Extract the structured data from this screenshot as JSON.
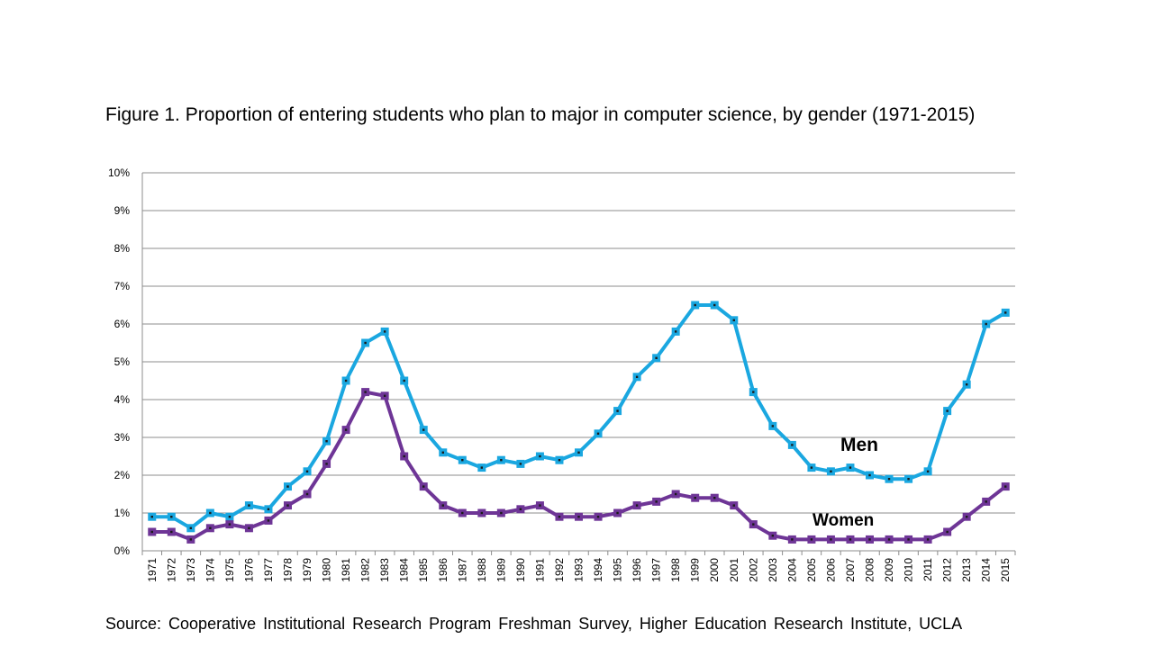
{
  "chart_data": {
    "type": "line",
    "title": "Figure 1. Proportion of entering students who plan to major in computer science, by gender (1971-2015)",
    "source": "Source: Cooperative Institutional Research Program Freshman Survey, Higher Education Research Institute, UCLA",
    "xlabel": "",
    "ylabel": "",
    "ylim": [
      0,
      10
    ],
    "y_ticks": [
      "0%",
      "1%",
      "2%",
      "3%",
      "4%",
      "5%",
      "6%",
      "7%",
      "8%",
      "9%",
      "10%"
    ],
    "grid": "horizontal",
    "legend": "inline-labels",
    "categories": [
      "1971",
      "1972",
      "1973",
      "1974",
      "1975",
      "1976",
      "1977",
      "1978",
      "1979",
      "1980",
      "1981",
      "1982",
      "1983",
      "1984",
      "1985",
      "1986",
      "1987",
      "1988",
      "1989",
      "1990",
      "1991",
      "1992",
      "1993",
      "1994",
      "1995",
      "1996",
      "1997",
      "1998",
      "1999",
      "2000",
      "2001",
      "2002",
      "2003",
      "2004",
      "2005",
      "2006",
      "2007",
      "2008",
      "2009",
      "2010",
      "2011",
      "2012",
      "2013",
      "2014",
      "2015"
    ],
    "series": [
      {
        "name": "Men",
        "color": "#1aa7e0",
        "values": [
          0.9,
          0.9,
          0.6,
          1.0,
          0.9,
          1.2,
          1.1,
          1.7,
          2.1,
          2.9,
          4.5,
          5.5,
          5.8,
          4.5,
          3.2,
          2.6,
          2.4,
          2.2,
          2.4,
          2.3,
          2.5,
          2.4,
          2.6,
          3.1,
          3.7,
          4.6,
          5.1,
          5.8,
          6.5,
          6.5,
          6.1,
          4.2,
          3.3,
          2.8,
          2.2,
          2.1,
          2.2,
          2.0,
          1.9,
          1.9,
          2.1,
          3.7,
          4.4,
          6.0,
          6.3
        ]
      },
      {
        "name": "Women",
        "color": "#6e3596",
        "values": [
          0.5,
          0.5,
          0.3,
          0.6,
          0.7,
          0.6,
          0.8,
          1.2,
          1.5,
          2.3,
          3.2,
          4.2,
          4.1,
          2.5,
          1.7,
          1.2,
          1.0,
          1.0,
          1.0,
          1.1,
          1.2,
          0.9,
          0.9,
          0.9,
          1.0,
          1.2,
          1.3,
          1.5,
          1.4,
          1.4,
          1.2,
          0.7,
          0.4,
          0.3,
          0.3,
          0.3,
          0.3,
          0.3,
          0.3,
          0.3,
          0.3,
          0.5,
          0.9,
          1.3,
          1.7
        ]
      }
    ]
  }
}
